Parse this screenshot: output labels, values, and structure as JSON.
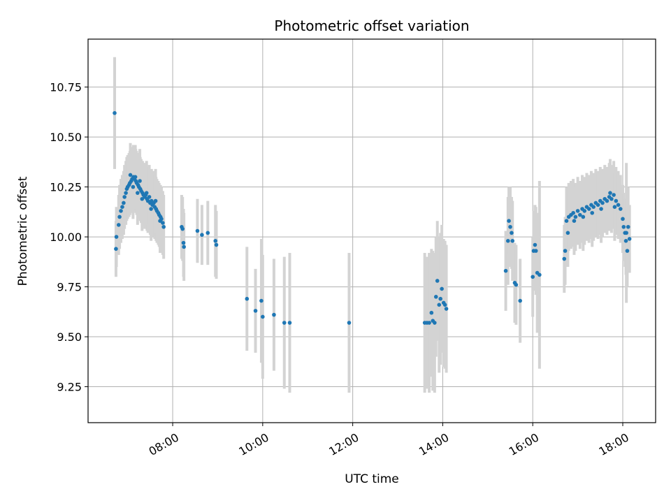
{
  "chart_data": {
    "type": "scatter",
    "title": "Photometric offset variation",
    "xlabel": "UTC time",
    "ylabel": "Photometric offset",
    "x_unit": "hours (UTC)",
    "xlim": [
      6.12,
      18.73
    ],
    "ylim": [
      9.07,
      10.99
    ],
    "grid": true,
    "x_ticks": [
      {
        "value": 8,
        "label": "08:00"
      },
      {
        "value": 10,
        "label": "10:00"
      },
      {
        "value": 12,
        "label": "12:00"
      },
      {
        "value": 14,
        "label": "14:00"
      },
      {
        "value": 16,
        "label": "16:00"
      },
      {
        "value": 18,
        "label": "18:00"
      }
    ],
    "y_ticks": [
      {
        "value": 9.25,
        "label": "9.25"
      },
      {
        "value": 9.5,
        "label": "9.50"
      },
      {
        "value": 9.75,
        "label": "9.75"
      },
      {
        "value": 10.0,
        "label": "10.00"
      },
      {
        "value": 10.25,
        "label": "10.25"
      },
      {
        "value": 10.5,
        "label": "10.50"
      },
      {
        "value": 10.75,
        "label": "10.75"
      }
    ],
    "point_color": "#1f77b4",
    "errorbar_color": "#d3d3d3",
    "series": [
      {
        "points": [
          [
            6.71,
            10.62,
            0.28
          ],
          [
            6.74,
            9.94,
            0.14
          ],
          [
            6.75,
            10.0,
            0.15
          ],
          [
            6.8,
            10.06,
            0.15
          ],
          [
            6.82,
            10.1,
            0.16
          ],
          [
            6.85,
            10.13,
            0.16
          ],
          [
            6.88,
            10.15,
            0.16
          ],
          [
            6.91,
            10.17,
            0.16
          ],
          [
            6.93,
            10.2,
            0.16
          ],
          [
            6.96,
            10.22,
            0.16
          ],
          [
            6.98,
            10.24,
            0.16
          ],
          [
            7.0,
            10.25,
            0.16
          ],
          [
            7.03,
            10.26,
            0.16
          ],
          [
            7.05,
            10.27,
            0.16
          ],
          [
            7.08,
            10.28,
            0.16
          ],
          [
            7.1,
            10.29,
            0.16
          ],
          [
            7.13,
            10.3,
            0.16
          ],
          [
            7.15,
            10.29,
            0.16
          ],
          [
            7.18,
            10.28,
            0.16
          ],
          [
            7.2,
            10.27,
            0.16
          ],
          [
            7.23,
            10.26,
            0.16
          ],
          [
            7.25,
            10.25,
            0.16
          ],
          [
            7.28,
            10.24,
            0.16
          ],
          [
            7.3,
            10.23,
            0.16
          ],
          [
            7.33,
            10.22,
            0.16
          ],
          [
            7.35,
            10.21,
            0.16
          ],
          [
            7.38,
            10.2,
            0.16
          ],
          [
            7.4,
            10.21,
            0.16
          ],
          [
            7.43,
            10.19,
            0.16
          ],
          [
            7.45,
            10.18,
            0.16
          ],
          [
            7.48,
            10.2,
            0.16
          ],
          [
            7.5,
            10.17,
            0.16
          ],
          [
            7.53,
            10.18,
            0.16
          ],
          [
            7.55,
            10.16,
            0.16
          ],
          [
            7.58,
            10.17,
            0.16
          ],
          [
            7.6,
            10.15,
            0.16
          ],
          [
            7.63,
            10.14,
            0.16
          ],
          [
            7.65,
            10.13,
            0.16
          ],
          [
            7.68,
            10.12,
            0.16
          ],
          [
            7.7,
            10.11,
            0.16
          ],
          [
            7.73,
            10.1,
            0.16
          ],
          [
            7.75,
            10.09,
            0.16
          ],
          [
            7.78,
            10.07,
            0.16
          ],
          [
            7.8,
            10.05,
            0.16
          ],
          [
            7.06,
            10.31,
            0.16
          ],
          [
            7.12,
            10.25,
            0.16
          ],
          [
            7.17,
            10.3,
            0.16
          ],
          [
            7.22,
            10.22,
            0.16
          ],
          [
            7.27,
            10.28,
            0.16
          ],
          [
            7.32,
            10.19,
            0.16
          ],
          [
            7.42,
            10.22,
            0.16
          ],
          [
            7.52,
            10.14,
            0.16
          ],
          [
            7.62,
            10.18,
            0.16
          ],
          [
            7.72,
            10.08,
            0.16
          ],
          [
            8.2,
            10.05,
            0.16
          ],
          [
            8.22,
            10.04,
            0.16
          ],
          [
            8.24,
            9.97,
            0.17
          ],
          [
            8.25,
            9.95,
            0.17
          ],
          [
            8.55,
            10.03,
            0.16
          ],
          [
            8.65,
            10.01,
            0.15
          ],
          [
            8.78,
            10.02,
            0.16
          ],
          [
            8.95,
            9.98,
            0.18
          ],
          [
            8.97,
            9.96,
            0.17
          ],
          [
            9.65,
            9.69,
            0.26
          ],
          [
            9.84,
            9.63,
            0.21
          ],
          [
            9.97,
            9.68,
            0.31
          ],
          [
            10.0,
            9.6,
            0.31
          ],
          [
            10.25,
            9.61,
            0.28
          ],
          [
            10.48,
            9.57,
            0.33
          ],
          [
            10.6,
            9.57,
            0.35
          ],
          [
            11.92,
            9.57,
            0.35
          ],
          [
            13.6,
            9.57,
            0.35
          ],
          [
            13.65,
            9.57,
            0.33
          ],
          [
            13.7,
            9.57,
            0.35
          ],
          [
            13.75,
            9.62,
            0.32
          ],
          [
            13.78,
            9.58,
            0.35
          ],
          [
            13.82,
            9.57,
            0.35
          ],
          [
            13.85,
            9.7,
            0.3
          ],
          [
            13.88,
            9.78,
            0.3
          ],
          [
            13.92,
            9.66,
            0.34
          ],
          [
            13.95,
            9.69,
            0.33
          ],
          [
            13.98,
            9.74,
            0.32
          ],
          [
            14.02,
            9.67,
            0.32
          ],
          [
            14.05,
            9.66,
            0.32
          ],
          [
            14.08,
            9.64,
            0.32
          ],
          [
            15.4,
            9.83,
            0.2
          ],
          [
            15.45,
            9.98,
            0.22
          ],
          [
            15.47,
            10.08,
            0.17
          ],
          [
            15.5,
            10.05,
            0.2
          ],
          [
            15.53,
            10.02,
            0.18
          ],
          [
            15.55,
            9.98,
            0.2
          ],
          [
            15.6,
            9.77,
            0.2
          ],
          [
            15.63,
            9.76,
            0.2
          ],
          [
            15.72,
            9.68,
            0.21
          ],
          [
            16.0,
            9.8,
            0.2
          ],
          [
            16.02,
            9.93,
            0.2
          ],
          [
            16.05,
            9.96,
            0.2
          ],
          [
            16.07,
            9.93,
            0.22
          ],
          [
            16.1,
            9.82,
            0.3
          ],
          [
            16.15,
            9.81,
            0.47
          ],
          [
            16.7,
            9.89,
            0.17
          ],
          [
            16.72,
            9.93,
            0.17
          ],
          [
            16.75,
            10.08,
            0.17
          ],
          [
            16.78,
            10.02,
            0.17
          ],
          [
            16.8,
            10.1,
            0.17
          ],
          [
            16.85,
            10.11,
            0.17
          ],
          [
            16.9,
            10.12,
            0.17
          ],
          [
            16.95,
            10.1,
            0.17
          ],
          [
            17.0,
            10.13,
            0.17
          ],
          [
            17.05,
            10.11,
            0.17
          ],
          [
            17.1,
            10.14,
            0.17
          ],
          [
            17.15,
            10.13,
            0.17
          ],
          [
            17.2,
            10.15,
            0.17
          ],
          [
            17.25,
            10.14,
            0.17
          ],
          [
            17.3,
            10.16,
            0.17
          ],
          [
            17.35,
            10.15,
            0.17
          ],
          [
            17.4,
            10.17,
            0.17
          ],
          [
            17.45,
            10.16,
            0.17
          ],
          [
            17.5,
            10.18,
            0.17
          ],
          [
            17.55,
            10.17,
            0.17
          ],
          [
            17.6,
            10.19,
            0.17
          ],
          [
            17.65,
            10.18,
            0.17
          ],
          [
            17.7,
            10.2,
            0.17
          ],
          [
            17.75,
            10.19,
            0.17
          ],
          [
            17.8,
            10.21,
            0.17
          ],
          [
            17.85,
            10.18,
            0.17
          ],
          [
            17.9,
            10.16,
            0.17
          ],
          [
            17.95,
            10.14,
            0.17
          ],
          [
            18.0,
            10.09,
            0.17
          ],
          [
            18.02,
            10.05,
            0.17
          ],
          [
            18.05,
            10.02,
            0.17
          ],
          [
            18.07,
            9.98,
            0.17
          ],
          [
            18.1,
            9.93,
            0.18
          ],
          [
            18.12,
            10.05,
            0.2
          ],
          [
            18.15,
            9.99,
            0.17
          ],
          [
            16.92,
            10.08,
            0.17
          ],
          [
            17.12,
            10.1,
            0.17
          ],
          [
            17.32,
            10.12,
            0.17
          ],
          [
            17.52,
            10.14,
            0.17
          ],
          [
            17.72,
            10.22,
            0.17
          ],
          [
            17.82,
            10.15,
            0.17
          ],
          [
            18.08,
            10.02,
            0.35
          ]
        ]
      }
    ]
  }
}
